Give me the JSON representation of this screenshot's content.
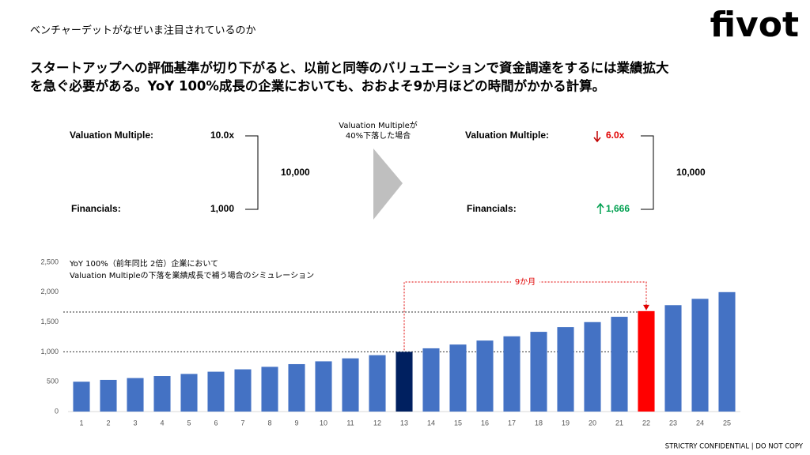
{
  "header": {
    "subtitle": "ベンチャーデットがなぜいま注目されているのか",
    "logo": "fivot"
  },
  "message": [
    "スタートアップへの評価基準が切り下がると、以前と同等のバリュエーションで資金調達をするには業績拡大",
    "を急ぐ必要がある。YoY 100%成長の企業においても、おおよそ9か月ほどの時間がかかる計算。"
  ],
  "before": {
    "multiple_label": "Valuation Multiple:",
    "multiple": "10.0x",
    "financials_label": "Financials:",
    "financials": "1,000",
    "valuation": "10,000"
  },
  "transition": [
    "Valuation Multipleが",
    "40%下落した場合"
  ],
  "after": {
    "multiple_label": "Valuation Multiple:",
    "multiple": "6.0x",
    "financials_label": "Financials:",
    "financials": "1,666",
    "valuation": "10,000"
  },
  "footer": "STRICTRY CONFIDENTIAL | DO NOT COPY",
  "chart_data": {
    "type": "bar",
    "title": [
      "YoY 100%（前年同比 2倍）企業において",
      "Valuation Multipleの下落を業績成長で補う場合のシミュレーション"
    ],
    "x": [
      1,
      2,
      3,
      4,
      5,
      6,
      7,
      8,
      9,
      10,
      11,
      12,
      13,
      14,
      15,
      16,
      17,
      18,
      19,
      20,
      21,
      22,
      23,
      24,
      25
    ],
    "values": [
      500,
      530,
      561,
      595,
      630,
      667,
      707,
      749,
      794,
      841,
      891,
      944,
      1000,
      1059,
      1122,
      1189,
      1260,
      1335,
      1414,
      1498,
      1587,
      1682,
      1782,
      1888,
      2000
    ],
    "colors": [
      "#4472c4",
      "#4472c4",
      "#4472c4",
      "#4472c4",
      "#4472c4",
      "#4472c4",
      "#4472c4",
      "#4472c4",
      "#4472c4",
      "#4472c4",
      "#4472c4",
      "#4472c4",
      "#002060",
      "#4472c4",
      "#4472c4",
      "#4472c4",
      "#4472c4",
      "#4472c4",
      "#4472c4",
      "#4472c4",
      "#4472c4",
      "#ff0000",
      "#4472c4",
      "#4472c4",
      "#4472c4"
    ],
    "ylim": [
      0,
      2500
    ],
    "yticks": [
      0,
      500,
      {
        "value": 1000,
        "label": "1,000"
      },
      {
        "value": 1500,
        "label": "1,500"
      },
      {
        "value": 2000,
        "label": "2,000"
      },
      {
        "value": 2500,
        "label": "2,500"
      }
    ],
    "reference_lines": [
      1000,
      1666
    ],
    "annotation": {
      "text": "9か月",
      "from": 13,
      "to": 22,
      "color": "#e00000"
    }
  }
}
